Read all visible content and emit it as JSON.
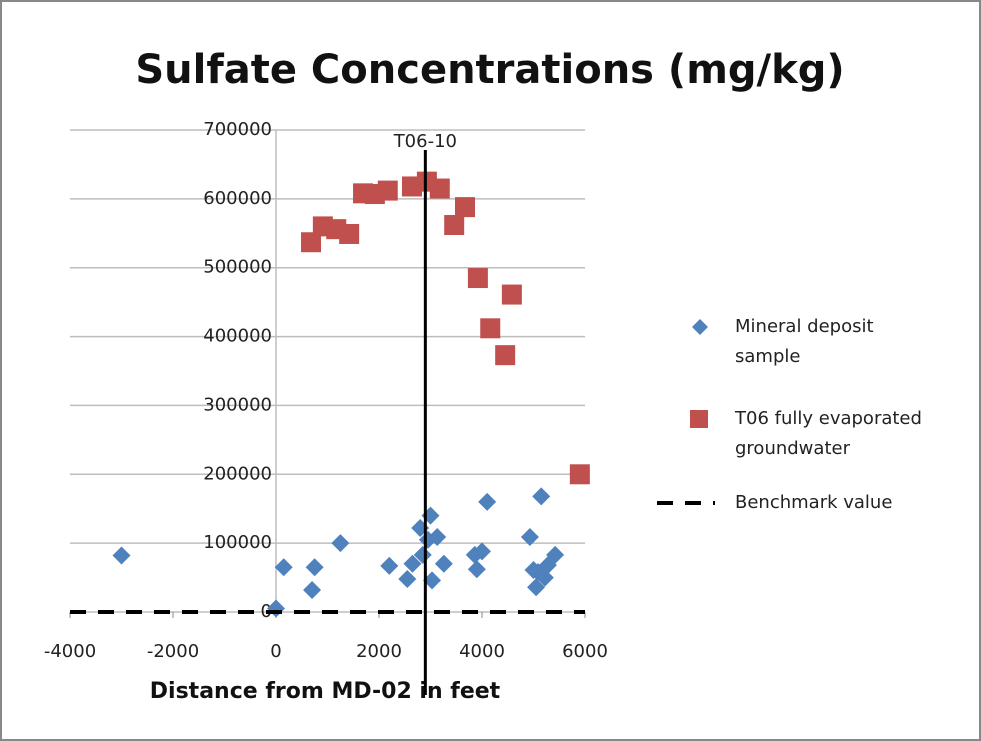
{
  "chart_data": {
    "type": "scatter",
    "title": "Sulfate Concentrations (mg/kg)",
    "x_label": "Distance from MD-02 in feet",
    "xlim": [
      -4000,
      6000
    ],
    "xticks": [
      -4000,
      -2000,
      0,
      2000,
      4000,
      6000
    ],
    "ylim": [
      0,
      700000
    ],
    "yticks": [
      0,
      100000,
      200000,
      300000,
      400000,
      500000,
      600000,
      700000
    ],
    "grid": true,
    "legend": "right",
    "vline": {
      "x": 2900,
      "label": "T06-10"
    },
    "series": [
      {
        "name": "Mineral deposit sample",
        "color": "#4f81bd",
        "marker": "diamond",
        "x": [
          -3000,
          0,
          150,
          700,
          750,
          1250,
          2200,
          2550,
          2650,
          2800,
          2850,
          2950,
          3000,
          3030,
          3130,
          3260,
          3860,
          3900,
          4000,
          4100,
          4930,
          5000,
          5050,
          5090,
          5150,
          5220,
          5280,
          5420
        ],
        "values": [
          82000,
          5000,
          65000,
          32000,
          65000,
          100000,
          67000,
          48000,
          70000,
          122000,
          83000,
          105000,
          140000,
          46000,
          109000,
          70000,
          83000,
          62000,
          88000,
          160000,
          109000,
          61000,
          36000,
          58000,
          168000,
          50000,
          68000,
          83000
        ]
      },
      {
        "name": "T06 fully evaporated groundwater",
        "color": "#c0504d",
        "marker": "square",
        "x": [
          680,
          910,
          1170,
          1420,
          1690,
          1920,
          2170,
          2640,
          2930,
          3180,
          3460,
          3670,
          3920,
          4160,
          4450,
          4580,
          5900
        ],
        "values": [
          537000,
          560000,
          556000,
          549000,
          608000,
          607000,
          612000,
          618000,
          625000,
          615000,
          562000,
          588000,
          485000,
          412000,
          373000,
          461000,
          200000
        ]
      },
      {
        "name": "Benchmark value",
        "color": "#000000",
        "marker": "dash",
        "x": [
          -4000,
          6000
        ],
        "values": [
          0,
          0
        ]
      }
    ]
  }
}
